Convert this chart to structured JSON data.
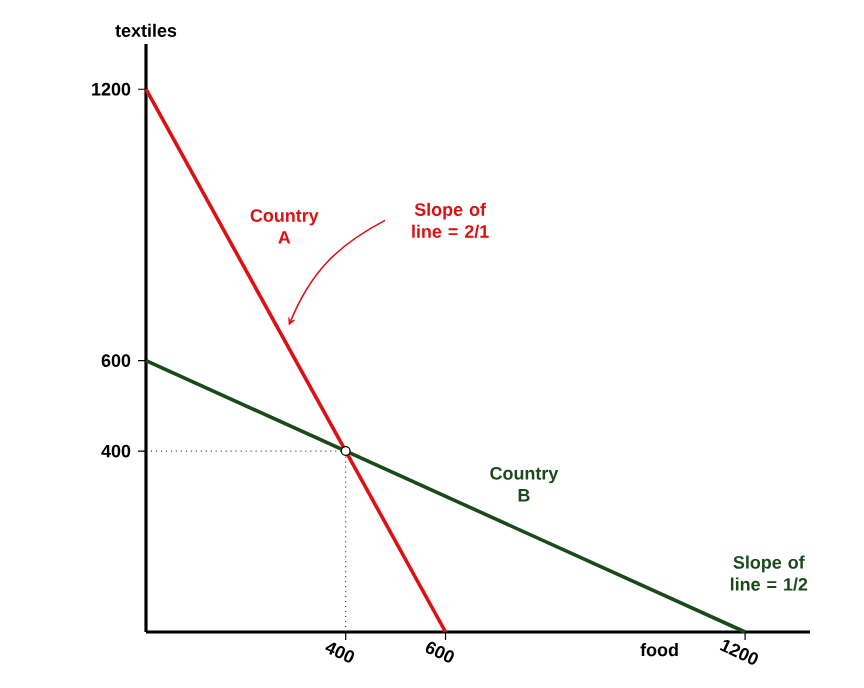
{
  "chart_data": {
    "type": "line",
    "xlabel": "food",
    "ylabel": "textiles",
    "xlim": [
      0,
      1330
    ],
    "ylim": [
      0,
      1300
    ],
    "xticks": [
      400,
      600,
      1200
    ],
    "yticks": [
      400,
      600,
      1200
    ],
    "grid": false,
    "series": [
      {
        "name": "Country A",
        "color": "#dd1111",
        "x": [
          0,
          600
        ],
        "values": [
          1200,
          0
        ]
      },
      {
        "name": "Country B",
        "color": "#1a4a1a",
        "x": [
          0,
          1200
        ],
        "values": [
          600,
          0
        ]
      },
      {
        "type": "line",
        "color": "#000000",
        "line_style": "dotted",
        "x": [
          0,
          400
        ],
        "values": [
          400,
          400
        ]
      },
      {
        "type": "line",
        "color": "#000000",
        "line_style": "dotted",
        "x": [
          400,
          400
        ],
        "values": [
          0,
          400
        ]
      },
      {
        "type": "scatter",
        "color": "#000000",
        "x": [
          400
        ],
        "values": [
          400
        ]
      }
    ],
    "annotations": [
      "Slope of line = 2/1",
      "Slope of line = 1/2"
    ]
  }
}
